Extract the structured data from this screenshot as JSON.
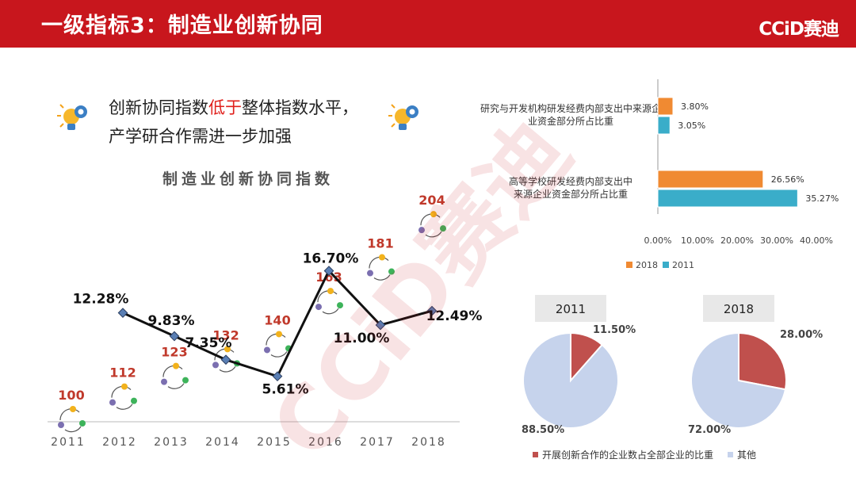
{
  "header": {
    "title": "一级指标3：制造业创新协同",
    "brand": "CCiD赛迪"
  },
  "headline": {
    "pre": "创新协同指数",
    "highlight": "低于",
    "post": "整体指数水平，",
    "line2": "产学研合作需进一步加强"
  },
  "watermark": "CCiD赛迪",
  "colors": {
    "header": "#c8161d",
    "highlight": "#e0201c",
    "orange": "#f08a32",
    "teal": "#3aadc9",
    "pie_main": "#c0504d",
    "pie_other": "#c6d3ec"
  },
  "chart_data": [
    {
      "type": "line",
      "title": "制造业创新协同指数",
      "categories": [
        "2011",
        "2012",
        "2013",
        "2014",
        "2015",
        "2016",
        "2017",
        "2018"
      ],
      "series": [
        {
          "values": [
            null,
            12.28,
            9.83,
            7.35,
            5.61,
            16.7,
            11.0,
            12.49
          ],
          "labels": [
            "",
            "12.28%",
            "9.83%",
            "7.35%",
            "5.61%",
            "16.70%",
            "11.00%",
            "12.49%"
          ]
        }
      ],
      "ylim": [
        0,
        20
      ],
      "rank_labels": [
        "100",
        "112",
        "123",
        "132",
        "140",
        "163",
        "181",
        "204"
      ]
    },
    {
      "type": "bar",
      "orientation": "horizontal",
      "categories": [
        "研究与开发机构研发经费内部支出中来源企业资金部分所占比重",
        "高等学校研发经费内部支出中来源企业资金部分所占比重"
      ],
      "series": [
        {
          "name": "2018",
          "values": [
            3.8,
            26.56
          ],
          "labels": [
            "3.80%",
            "26.56%"
          ]
        },
        {
          "name": "2011",
          "values": [
            3.05,
            35.27
          ],
          "labels": [
            "3.05%",
            "35.27%"
          ]
        }
      ],
      "xlim": [
        0,
        40
      ],
      "xticks": [
        "0.00%",
        "10.00%",
        "20.00%",
        "30.00%",
        "40.00%"
      ],
      "legend": "bottom"
    },
    {
      "type": "pie",
      "title": "2011",
      "slices": [
        {
          "name": "开展创新合作的企业数占全部企业的比重",
          "value": 11.5,
          "label": "11.50%"
        },
        {
          "name": "其他",
          "value": 88.5,
          "label": "88.50%"
        }
      ]
    },
    {
      "type": "pie",
      "title": "2018",
      "slices": [
        {
          "name": "开展创新合作的企业数占全部企业的比重",
          "value": 28.0,
          "label": "28.00%"
        },
        {
          "name": "其他",
          "value": 72.0,
          "label": "72.00%"
        }
      ],
      "legend": [
        "开展创新合作的企业数占全部企业的比重",
        "其他"
      ]
    }
  ]
}
